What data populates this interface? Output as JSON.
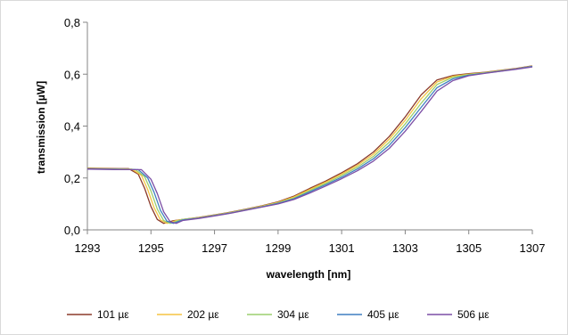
{
  "chart_data": {
    "type": "line",
    "xlabel": "wavelength [nm]",
    "ylabel": "transmission [µW]",
    "xlim": [
      1293,
      1307
    ],
    "ylim": [
      0,
      0.8
    ],
    "x_ticks": [
      "1293",
      "1295",
      "1297",
      "1299",
      "1301",
      "1303",
      "1305",
      "1307"
    ],
    "y_ticks": [
      "0,0",
      "0,2",
      "0,4",
      "0,6",
      "0,8"
    ],
    "grid": false,
    "legend_position": "bottom",
    "series": [
      {
        "name": "101 µε",
        "color": "#8b3a2a",
        "points": [
          [
            1293,
            0.238
          ],
          [
            1294,
            0.236
          ],
          [
            1294.3,
            0.236
          ],
          [
            1294.6,
            0.215
          ],
          [
            1294.8,
            0.16
          ],
          [
            1295,
            0.09
          ],
          [
            1295.2,
            0.04
          ],
          [
            1295.4,
            0.025
          ],
          [
            1295.7,
            0.035
          ],
          [
            1296,
            0.04
          ],
          [
            1296.5,
            0.048
          ],
          [
            1297,
            0.058
          ],
          [
            1297.5,
            0.068
          ],
          [
            1298,
            0.08
          ],
          [
            1298.5,
            0.093
          ],
          [
            1299,
            0.108
          ],
          [
            1299.5,
            0.13
          ],
          [
            1300,
            0.16
          ],
          [
            1300.5,
            0.188
          ],
          [
            1301,
            0.22
          ],
          [
            1301.5,
            0.255
          ],
          [
            1302,
            0.3
          ],
          [
            1302.5,
            0.36
          ],
          [
            1303,
            0.435
          ],
          [
            1303.5,
            0.52
          ],
          [
            1304,
            0.578
          ],
          [
            1304.5,
            0.595
          ],
          [
            1305,
            0.602
          ],
          [
            1305.5,
            0.607
          ],
          [
            1306,
            0.615
          ],
          [
            1306.5,
            0.622
          ],
          [
            1307,
            0.632
          ]
        ]
      },
      {
        "name": "202 µε",
        "color": "#f5c342",
        "points": [
          [
            1293,
            0.237
          ],
          [
            1294,
            0.235
          ],
          [
            1294.4,
            0.234
          ],
          [
            1294.7,
            0.21
          ],
          [
            1294.9,
            0.155
          ],
          [
            1295.1,
            0.085
          ],
          [
            1295.3,
            0.038
          ],
          [
            1295.5,
            0.025
          ],
          [
            1295.8,
            0.036
          ],
          [
            1296,
            0.04
          ],
          [
            1296.5,
            0.047
          ],
          [
            1297,
            0.057
          ],
          [
            1297.5,
            0.067
          ],
          [
            1298,
            0.079
          ],
          [
            1298.5,
            0.092
          ],
          [
            1299,
            0.106
          ],
          [
            1299.5,
            0.127
          ],
          [
            1300,
            0.156
          ],
          [
            1300.5,
            0.184
          ],
          [
            1301,
            0.215
          ],
          [
            1301.5,
            0.249
          ],
          [
            1302,
            0.292
          ],
          [
            1302.5,
            0.35
          ],
          [
            1303,
            0.422
          ],
          [
            1303.5,
            0.505
          ],
          [
            1304,
            0.57
          ],
          [
            1304.5,
            0.592
          ],
          [
            1305,
            0.6
          ],
          [
            1305.5,
            0.606
          ],
          [
            1306,
            0.614
          ],
          [
            1306.5,
            0.621
          ],
          [
            1307,
            0.631
          ]
        ]
      },
      {
        "name": "304 µε",
        "color": "#9bcf6e",
        "points": [
          [
            1293,
            0.236
          ],
          [
            1294,
            0.234
          ],
          [
            1294.5,
            0.233
          ],
          [
            1294.8,
            0.205
          ],
          [
            1295,
            0.15
          ],
          [
            1295.2,
            0.08
          ],
          [
            1295.4,
            0.036
          ],
          [
            1295.6,
            0.025
          ],
          [
            1295.9,
            0.037
          ],
          [
            1296,
            0.04
          ],
          [
            1296.5,
            0.046
          ],
          [
            1297,
            0.056
          ],
          [
            1297.5,
            0.066
          ],
          [
            1298,
            0.078
          ],
          [
            1298.5,
            0.09
          ],
          [
            1299,
            0.104
          ],
          [
            1299.5,
            0.123
          ],
          [
            1300,
            0.151
          ],
          [
            1300.5,
            0.179
          ],
          [
            1301,
            0.209
          ],
          [
            1301.5,
            0.242
          ],
          [
            1302,
            0.283
          ],
          [
            1302.5,
            0.338
          ],
          [
            1303,
            0.408
          ],
          [
            1303.5,
            0.488
          ],
          [
            1304,
            0.56
          ],
          [
            1304.5,
            0.588
          ],
          [
            1305,
            0.598
          ],
          [
            1305.5,
            0.605
          ],
          [
            1306,
            0.613
          ],
          [
            1306.5,
            0.62
          ],
          [
            1307,
            0.63
          ]
        ]
      },
      {
        "name": "405 µε",
        "color": "#3f7fc1",
        "points": [
          [
            1293,
            0.235
          ],
          [
            1294,
            0.233
          ],
          [
            1294.6,
            0.232
          ],
          [
            1294.9,
            0.2
          ],
          [
            1295.1,
            0.145
          ],
          [
            1295.3,
            0.075
          ],
          [
            1295.5,
            0.034
          ],
          [
            1295.7,
            0.025
          ],
          [
            1296,
            0.038
          ],
          [
            1296.5,
            0.045
          ],
          [
            1297,
            0.055
          ],
          [
            1297.5,
            0.065
          ],
          [
            1298,
            0.077
          ],
          [
            1298.5,
            0.089
          ],
          [
            1299,
            0.102
          ],
          [
            1299.5,
            0.12
          ],
          [
            1300,
            0.147
          ],
          [
            1300.5,
            0.174
          ],
          [
            1301,
            0.203
          ],
          [
            1301.5,
            0.235
          ],
          [
            1302,
            0.274
          ],
          [
            1302.5,
            0.326
          ],
          [
            1303,
            0.394
          ],
          [
            1303.5,
            0.472
          ],
          [
            1304,
            0.548
          ],
          [
            1304.5,
            0.582
          ],
          [
            1305,
            0.596
          ],
          [
            1305.5,
            0.604
          ],
          [
            1306,
            0.612
          ],
          [
            1306.5,
            0.62
          ],
          [
            1307,
            0.63
          ]
        ]
      },
      {
        "name": "506 µε",
        "color": "#7c4fa6",
        "points": [
          [
            1293,
            0.234
          ],
          [
            1294,
            0.232
          ],
          [
            1294.7,
            0.232
          ],
          [
            1295,
            0.195
          ],
          [
            1295.2,
            0.14
          ],
          [
            1295.4,
            0.07
          ],
          [
            1295.6,
            0.032
          ],
          [
            1295.8,
            0.025
          ],
          [
            1296,
            0.036
          ],
          [
            1296.5,
            0.044
          ],
          [
            1297,
            0.054
          ],
          [
            1297.5,
            0.064
          ],
          [
            1298,
            0.076
          ],
          [
            1298.5,
            0.088
          ],
          [
            1299,
            0.1
          ],
          [
            1299.5,
            0.117
          ],
          [
            1300,
            0.142
          ],
          [
            1300.5,
            0.169
          ],
          [
            1301,
            0.197
          ],
          [
            1301.5,
            0.228
          ],
          [
            1302,
            0.265
          ],
          [
            1302.5,
            0.314
          ],
          [
            1303,
            0.38
          ],
          [
            1303.5,
            0.456
          ],
          [
            1304,
            0.535
          ],
          [
            1304.5,
            0.575
          ],
          [
            1305,
            0.594
          ],
          [
            1305.5,
            0.603
          ],
          [
            1306,
            0.611
          ],
          [
            1306.5,
            0.619
          ],
          [
            1307,
            0.628
          ]
        ]
      }
    ]
  }
}
